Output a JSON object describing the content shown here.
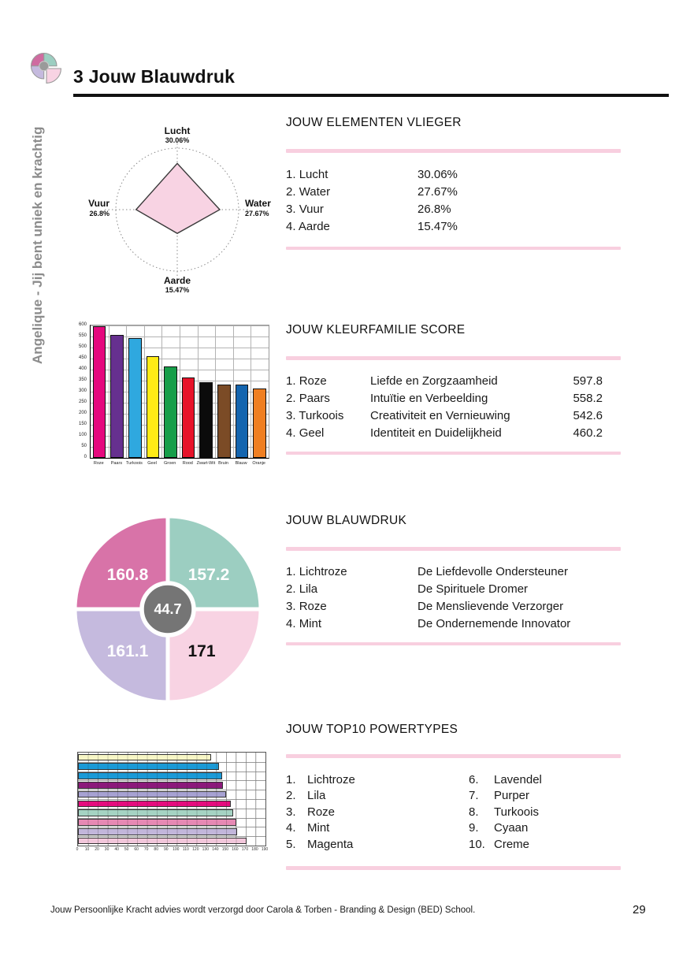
{
  "header": {
    "title": "3 Jouw Blauwdruk"
  },
  "sidebar": {
    "text": "Angelique - Jij bent uniek en krachtig"
  },
  "logo": {
    "colors": [
      "#cf6ba0",
      "#9ccec1",
      "#c5bade",
      "#f8d3e3"
    ],
    "center_color": "#9a9a9a"
  },
  "theme": {
    "divider_pink": "#f8cfdf",
    "accent_pink": "#f8d3e3"
  },
  "sections": {
    "elementen": {
      "title": "JOUW ELEMENTEN VLIEGER",
      "items": [
        {
          "num": "1.",
          "label": "Lucht",
          "value": "30.06%"
        },
        {
          "num": "2.",
          "label": "Water",
          "value": "27.67%"
        },
        {
          "num": "3.",
          "label": "Vuur",
          "value": "26.8%"
        },
        {
          "num": "4.",
          "label": "Aarde",
          "value": "15.47%"
        }
      ]
    },
    "kleurfamilie": {
      "title": "JOUW KLEURFAMILIE SCORE",
      "items": [
        {
          "num": "1.",
          "label": "Roze",
          "desc": "Liefde en Zorgzaamheid",
          "value": "597.8"
        },
        {
          "num": "2.",
          "label": "Paars",
          "desc": "Intuïtie en Verbeelding",
          "value": "558.2"
        },
        {
          "num": "3.",
          "label": "Turkoois",
          "desc": "Creativiteit en Vernieuwing",
          "value": "542.6"
        },
        {
          "num": "4.",
          "label": "Geel",
          "desc": "Identiteit en Duidelijkheid",
          "value": "460.2"
        }
      ]
    },
    "blauwdruk": {
      "title": "JOUW BLAUWDRUK",
      "items": [
        {
          "num": "1.",
          "label": "Lichtroze",
          "desc": "De Liefdevolle Ondersteuner"
        },
        {
          "num": "2.",
          "label": "Lila",
          "desc": "De Spirituele Dromer"
        },
        {
          "num": "3.",
          "label": "Roze",
          "desc": "De Menslievende Verzorger"
        },
        {
          "num": "4.",
          "label": "Mint",
          "desc": "De Ondernemende Innovator"
        }
      ]
    },
    "powertypes": {
      "title": "JOUW TOP10 POWERTYPES",
      "col1": [
        {
          "num": "1.",
          "label": "Lichtroze"
        },
        {
          "num": "2.",
          "label": "Lila"
        },
        {
          "num": "3.",
          "label": "Roze"
        },
        {
          "num": "4.",
          "label": "Mint"
        },
        {
          "num": "5.",
          "label": "Magenta"
        }
      ],
      "col2": [
        {
          "num": "6.",
          "label": "Lavendel"
        },
        {
          "num": "7.",
          "label": "Purper"
        },
        {
          "num": "8.",
          "label": "Turkoois"
        },
        {
          "num": "9.",
          "label": "Cyaan"
        },
        {
          "num": "10.",
          "label": "Creme"
        }
      ]
    }
  },
  "footer": {
    "text": "Jouw Persoonlijke Kracht advies wordt verzorgd door Carola & Torben - Branding & Design (BED) School.",
    "page_number": "29"
  },
  "chart_data": [
    {
      "type": "radar",
      "name": "elementen-vlieger",
      "axes": [
        "Lucht",
        "Water",
        "Aarde",
        "Vuur"
      ],
      "values": [
        30.06,
        27.67,
        15.47,
        26.8
      ],
      "labels": [
        "30.06%",
        "27.67%",
        "15.47%",
        "26.8%"
      ],
      "max": 40,
      "fill": "#f8d3e3",
      "stroke": "#3a3a3a",
      "grid": "dotted-circle-and-cross"
    },
    {
      "type": "bar",
      "name": "kleurfamilie-score",
      "categories": [
        "Roze",
        "Paars",
        "Turkoois",
        "Geel",
        "Groen",
        "Rood",
        "Zwart-Wit",
        "Bruin",
        "Blauw",
        "Oranje"
      ],
      "values": [
        597.8,
        558.2,
        542.6,
        460.2,
        413,
        364,
        342,
        333,
        331,
        316
      ],
      "colors": [
        "#e5087e",
        "#66308f",
        "#2fa8df",
        "#ffeb16",
        "#169e49",
        "#e7132a",
        "#0b0b0b",
        "#7b4b26",
        "#1465af",
        "#ef7f22"
      ],
      "ylim": [
        0,
        600
      ],
      "ytick": 50,
      "grid": true,
      "legend": "none"
    },
    {
      "type": "pie",
      "name": "blauwdruk-quadrant",
      "slices": [
        {
          "label": "Roze",
          "value": 160.8,
          "color": "#d873a8",
          "text_color": "#ffffff",
          "pos": "top-left"
        },
        {
          "label": "Mint",
          "value": 157.2,
          "color": "#9ccec1",
          "text_color": "#ffffff",
          "pos": "top-right"
        },
        {
          "label": "Lichtroze",
          "value": 171,
          "color": "#f8d3e3",
          "text_color": "#111111",
          "pos": "bottom-right"
        },
        {
          "label": "Lila",
          "value": 161.1,
          "color": "#c5bade",
          "text_color": "#ffffff",
          "pos": "bottom-left"
        }
      ],
      "center": {
        "value": 44.7,
        "color": "#757575",
        "text_color": "#ffffff"
      }
    },
    {
      "type": "bar-horizontal",
      "name": "top10-powertypes",
      "categories": [
        "Creme",
        "Cyaan",
        "Turkoois",
        "Purper",
        "Lavendel",
        "Magenta",
        "Mint",
        "Roze",
        "Lila",
        "Lichtroze"
      ],
      "values": [
        135,
        143,
        146,
        146.5,
        150,
        155,
        157.2,
        160.8,
        161.1,
        171
      ],
      "colors": [
        "#f7f6c6",
        "#1b9ad7",
        "#1b9ad7",
        "#8c1a7b",
        "#a7a2d2",
        "#e50c7e",
        "#a5d3c3",
        "#e689b4",
        "#c2b6db",
        "#f2c7db"
      ],
      "xlim": [
        0,
        190
      ],
      "xtick": 10,
      "grid": true,
      "legend": "none"
    }
  ]
}
